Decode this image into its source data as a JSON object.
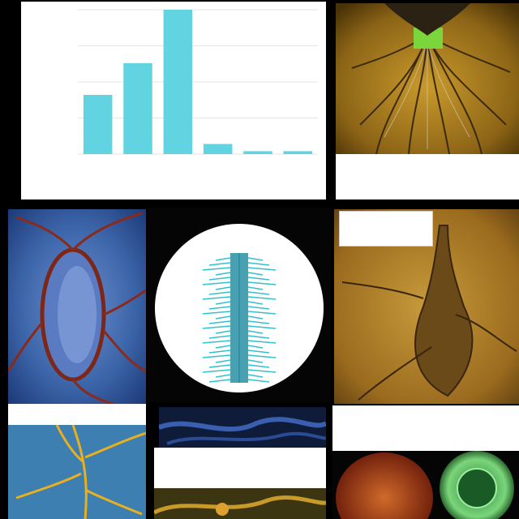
{
  "colors": {
    "background": "#000000",
    "bar": "#62d3e0",
    "card": "#ffffff",
    "gold": "#b8861c",
    "blue_tissue": "#3d6fae",
    "vessel_red": "#8a2a1a",
    "cyan_spine": "#2bb3c6"
  },
  "chart": {
    "title": "",
    "ylabel_labels": [
      "",
      "",
      "",
      "",
      "",
      ""
    ],
    "xtick_labels": [
      "",
      "",
      "",
      "",
      "",
      ""
    ]
  },
  "chart_data": {
    "type": "bar",
    "title": "",
    "categories": [
      "",
      "",
      "",
      "",
      "",
      ""
    ],
    "values": [
      0.41,
      0.63,
      1.0,
      0.07,
      0.02,
      0.02
    ],
    "ylim": [
      0,
      1.0
    ],
    "grid": true
  },
  "captions": {
    "top_right": "",
    "top_right_sub": "",
    "mid_right": "",
    "bottom_left": "",
    "bottom_center_left": "",
    "bottom_center_right": "",
    "bottom_right": "",
    "bottom_right_sub": ""
  }
}
